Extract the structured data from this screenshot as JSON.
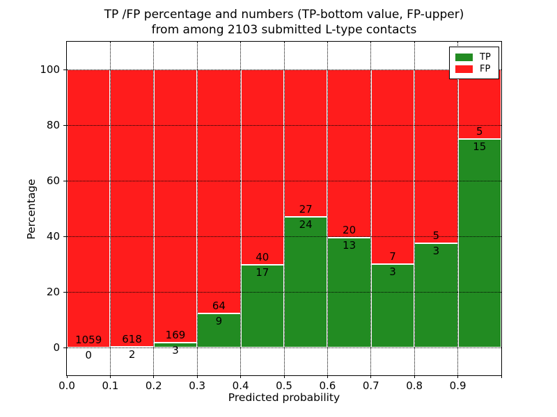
{
  "chart_data": {
    "type": "bar",
    "stacked": true,
    "values_are": "percent of bin total; numeric labels show raw counts",
    "title_line1": "TP /FP percentage and numbers (TP-bottom value, FP-upper)",
    "title_line2": "from among 2103 submitted L-type contacts",
    "total_submitted_contacts": 2103,
    "xlabel": "Predicted probability",
    "ylabel": "Percentage",
    "bins": [
      "0.0-0.1",
      "0.1-0.2",
      "0.2-0.3",
      "0.3-0.4",
      "0.4-0.5",
      "0.5-0.6",
      "0.6-0.7",
      "0.7-0.8",
      "0.8-0.9",
      "0.9-1.0"
    ],
    "bin_width": 0.1,
    "series": [
      {
        "name": "TP",
        "color": "#228b22",
        "counts": [
          0,
          2,
          3,
          9,
          17,
          24,
          13,
          3,
          3,
          15
        ],
        "percent": [
          0.0,
          0.32,
          1.74,
          12.33,
          29.82,
          47.06,
          39.39,
          30.0,
          37.5,
          75.0
        ]
      },
      {
        "name": "FP",
        "color": "#ff1c1c",
        "counts": [
          1059,
          618,
          169,
          64,
          40,
          27,
          20,
          7,
          5,
          5
        ],
        "percent": [
          100.0,
          99.68,
          98.26,
          87.67,
          70.18,
          52.94,
          60.61,
          70.0,
          62.5,
          25.0
        ]
      }
    ],
    "xlim": [
      0.0,
      1.0
    ],
    "ylim": [
      -10,
      110
    ],
    "xticks": [
      "0.0",
      "0.1",
      "0.2",
      "0.3",
      "0.4",
      "0.5",
      "0.6",
      "0.7",
      "0.8",
      "0.9"
    ],
    "yticks": [
      0,
      20,
      40,
      60,
      80,
      100
    ],
    "grid": true,
    "grid_style": "dotted",
    "legend": {
      "position": "upper right",
      "entries": [
        {
          "label": "TP",
          "color": "#228b22"
        },
        {
          "label": "FP",
          "color": "#ff1c1c"
        }
      ]
    }
  }
}
